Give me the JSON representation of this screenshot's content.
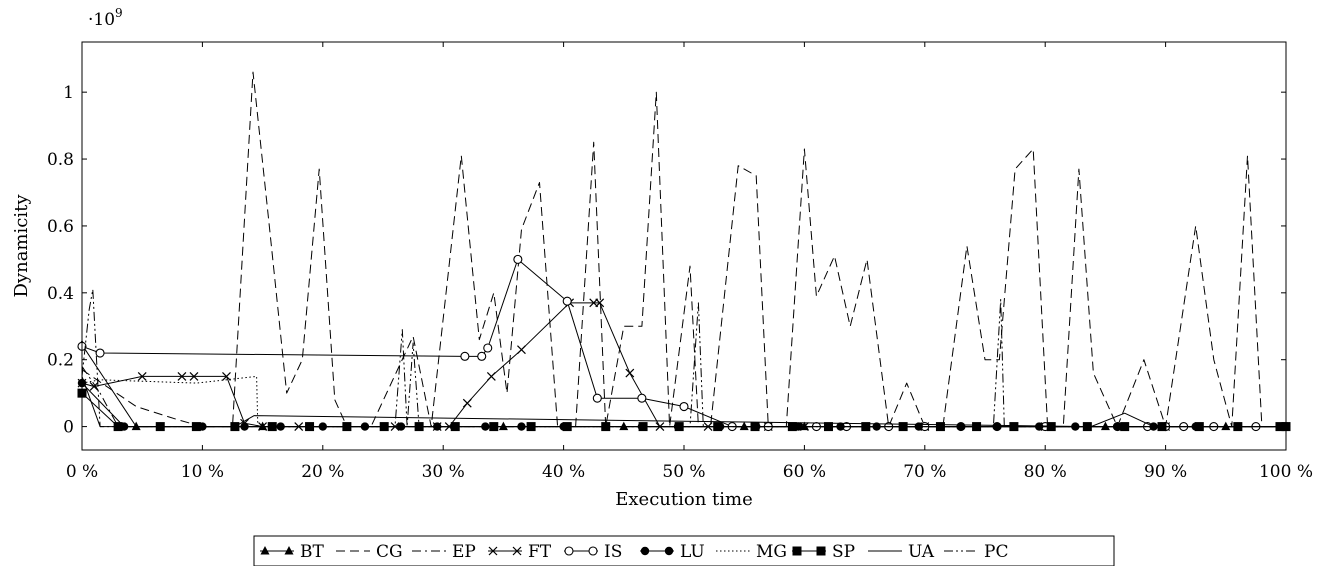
{
  "chart_data": {
    "type": "line",
    "title": "",
    "xlabel": "Execution time",
    "ylabel": "Dynamicity",
    "y_multiplier_label": "·10",
    "y_multiplier_exponent": "9",
    "xlim": [
      0,
      100
    ],
    "ylim": [
      -0.07,
      1.15
    ],
    "x_ticks": [
      0,
      10,
      20,
      30,
      40,
      50,
      60,
      70,
      80,
      90,
      100
    ],
    "x_tick_labels": [
      "0 %",
      "10 %",
      "20 %",
      "30 %",
      "40 %",
      "50 %",
      "60 %",
      "70 %",
      "80 %",
      "90 %",
      "100 %"
    ],
    "y_ticks": [
      0,
      0.2,
      0.4,
      0.6,
      0.8,
      1
    ],
    "y_tick_labels": [
      "0",
      "0.2",
      "0.4",
      "0.6",
      "0.8",
      "1"
    ],
    "grid": false,
    "legend_position": "bottom",
    "series": [
      {
        "name": "BT",
        "style": "solid",
        "marker": "triangle",
        "x": [
          0,
          4.5,
          15,
          35,
          45,
          55,
          60,
          70,
          85,
          95,
          100
        ],
        "y": [
          0.245,
          0,
          0,
          0,
          0,
          0,
          0,
          0,
          0,
          0,
          0
        ]
      },
      {
        "name": "CG",
        "style": "dashed",
        "marker": "none",
        "x": [
          0,
          4.5,
          8,
          10,
          12.5,
          14.2,
          15.5,
          17,
          18.3,
          19.7,
          21,
          22,
          24,
          27.5,
          29,
          31.5,
          33,
          34.2,
          35.3,
          36.5,
          38,
          39.5,
          41,
          42.5,
          43.5,
          45,
          46.5,
          47.7,
          48.8,
          50.5,
          51.2,
          52.2,
          54.5,
          56,
          57,
          58.5,
          60,
          61,
          62.5,
          63.8,
          65.2,
          67,
          68.5,
          70,
          71.5,
          73.5,
          75,
          76.2,
          77.5,
          79,
          80.2,
          81.5,
          82.8,
          84,
          86,
          88.2,
          90,
          92.5,
          94,
          95.5,
          96.8,
          98,
          100
        ],
        "y": [
          0.17,
          0.06,
          0.02,
          0,
          0,
          1.06,
          0.62,
          0.1,
          0.2,
          0.77,
          0.08,
          0,
          0,
          0.27,
          0,
          0.81,
          0.26,
          0.4,
          0.1,
          0.59,
          0.73,
          0,
          0,
          0.85,
          0,
          0.3,
          0.3,
          1.0,
          0,
          0.48,
          0,
          0,
          0.78,
          0.75,
          0,
          0,
          0.83,
          0.39,
          0.51,
          0.3,
          0.5,
          0,
          0.13,
          0,
          0,
          0.54,
          0.2,
          0.2,
          0.77,
          0.83,
          0,
          0,
          0.77,
          0.16,
          0,
          0.2,
          0,
          0.6,
          0.2,
          0,
          0.81,
          0,
          0
        ]
      },
      {
        "name": "EP",
        "style": "dashdot",
        "marker": "none",
        "x": [
          0,
          1.5,
          3,
          100
        ],
        "y": [
          0.18,
          0.1,
          0,
          0
        ]
      },
      {
        "name": "FT",
        "style": "solid",
        "marker": "cross",
        "x": [
          0,
          1,
          5,
          8.3,
          9.3,
          12,
          13.5,
          15,
          18,
          22,
          26,
          29.5,
          30.5,
          32,
          34,
          36.5,
          40.5,
          42.5,
          43,
          45.5,
          48,
          52,
          57,
          60,
          70,
          80,
          90,
          100
        ],
        "y": [
          0.13,
          0.12,
          0.15,
          0.15,
          0.15,
          0.15,
          0.01,
          0,
          0,
          0,
          0,
          0,
          0,
          0.07,
          0.15,
          0.23,
          0.37,
          0.37,
          0.37,
          0.16,
          0,
          0,
          0,
          0,
          0,
          0,
          0,
          0
        ]
      },
      {
        "name": "IS",
        "style": "solid",
        "marker": "circle-open",
        "x": [
          0,
          1.5,
          31.8,
          33.2,
          33.7,
          36.2,
          40.3,
          42.8,
          46.5,
          50,
          54,
          57,
          61,
          63.5,
          67,
          70,
          73,
          76,
          80,
          86,
          88.5,
          90,
          91.5,
          94,
          97.5,
          100
        ],
        "y": [
          0.24,
          0.22,
          0.21,
          0.21,
          0.235,
          0.5,
          0.375,
          0.085,
          0.085,
          0.06,
          0,
          0,
          0,
          0,
          0,
          0,
          0,
          0,
          0,
          0,
          0,
          0,
          0,
          0,
          0,
          0
        ]
      },
      {
        "name": "LU",
        "style": "solid",
        "marker": "circle-filled",
        "x": [
          0,
          3.5,
          6.5,
          10,
          13.5,
          16.5,
          20,
          23.5,
          26.5,
          29.5,
          33.5,
          36.5,
          40,
          43.5,
          46.5,
          49.5,
          53,
          56,
          59.5,
          63,
          66,
          69.5,
          73,
          76,
          79.5,
          82.5,
          86,
          89,
          92.5,
          96,
          100
        ],
        "y": [
          0.13,
          0,
          0,
          0,
          0,
          0,
          0,
          0,
          0,
          0,
          0,
          0,
          0,
          0,
          0,
          0,
          0,
          0,
          0,
          0,
          0,
          0,
          0,
          0,
          0,
          0,
          0,
          0,
          0,
          0,
          0
        ]
      },
      {
        "name": "MG",
        "style": "dotted",
        "marker": "none",
        "x": [
          0,
          1.5,
          9.5,
          14.5,
          14.6,
          100
        ],
        "y": [
          0.13,
          0.14,
          0.13,
          0.15,
          0,
          0
        ]
      },
      {
        "name": "SP",
        "style": "solid",
        "marker": "square-filled",
        "x": [
          0,
          3,
          6.5,
          9.5,
          12.7,
          15.8,
          18.9,
          22,
          25.1,
          28,
          31,
          34.2,
          37.3,
          40.3,
          43.5,
          46.6,
          49.6,
          52.8,
          55.9,
          59,
          62,
          65.1,
          68.2,
          71.3,
          74.3,
          77.4,
          80.5,
          83.5,
          86.6,
          89.7,
          92.8,
          96,
          99.5,
          100
        ],
        "y": [
          0.1,
          0,
          0,
          0,
          0,
          0,
          0,
          0,
          0,
          0,
          0,
          0,
          0,
          0,
          0,
          0,
          0,
          0,
          0,
          0,
          0,
          0,
          0,
          0,
          0,
          0,
          0,
          0,
          0,
          0,
          0,
          0,
          0,
          0
        ]
      },
      {
        "name": "UA",
        "style": "solid",
        "marker": "none",
        "x": [
          0,
          1.5,
          12.7,
          14.3,
          83.8,
          86.6,
          89,
          100
        ],
        "y": [
          0.15,
          0,
          0,
          0.033,
          0,
          0.04,
          0,
          0
        ]
      },
      {
        "name": "PC",
        "style": "dashdotdot",
        "marker": "none",
        "x": [
          0,
          0.6,
          0.9,
          1.5,
          2,
          26,
          26.6,
          27,
          27.5,
          28,
          50.5,
          51.2,
          51.6,
          75.7,
          76.3,
          76.6,
          100
        ],
        "y": [
          0.15,
          0.35,
          0.41,
          0,
          0,
          0,
          0.29,
          0,
          0.25,
          0,
          0,
          0.37,
          0,
          0,
          0.38,
          0,
          0
        ]
      }
    ]
  }
}
